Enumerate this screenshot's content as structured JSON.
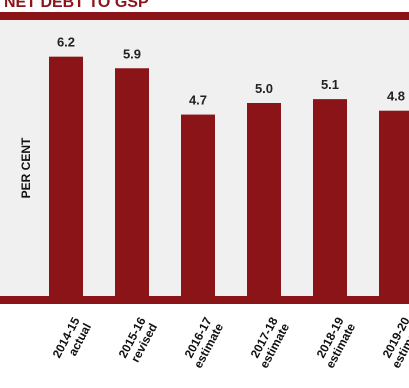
{
  "heading": "NET DEBT TO GSP",
  "colors": {
    "bar": "#8b1419",
    "band": "#8b1419",
    "plot_bg": "#f0f0f0",
    "text": "#111111"
  },
  "chart_data": {
    "type": "bar",
    "title": "NET DEBT TO GSP",
    "ylabel": "PER CENT",
    "xlabel": "",
    "categories": [
      [
        "2014-15",
        "actual"
      ],
      [
        "2015-16",
        "revised"
      ],
      [
        "2016-17",
        "estimate"
      ],
      [
        "2017-18",
        "estimate"
      ],
      [
        "2018-19",
        "estimate"
      ],
      [
        "2019-20",
        "estimate"
      ]
    ],
    "values": [
      6.2,
      5.9,
      4.7,
      5.0,
      5.1,
      4.8
    ],
    "data_labels": [
      "6.2",
      "5.9",
      "4.7",
      "5.0",
      "5.1",
      "4.8"
    ],
    "ylim": [
      0,
      7.15
    ],
    "grid": false,
    "legend": "none"
  }
}
